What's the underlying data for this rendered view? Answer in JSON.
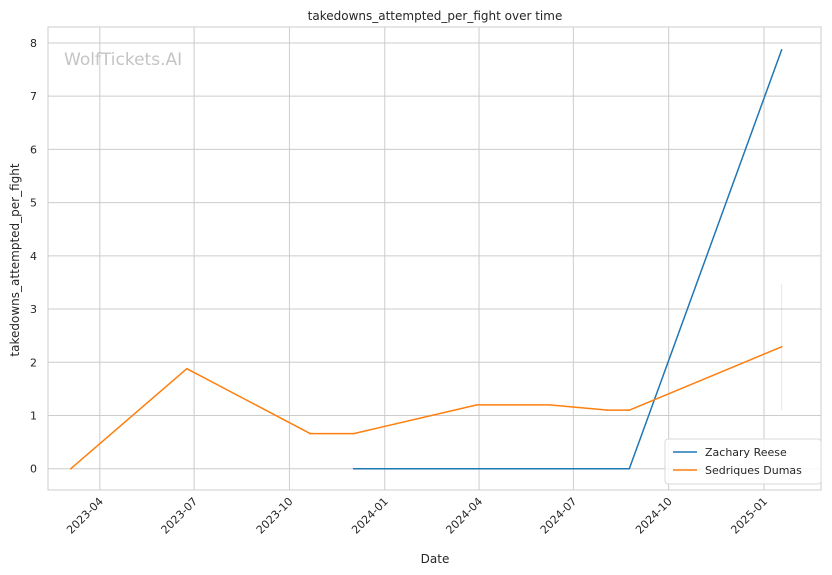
{
  "chart_data": {
    "type": "line",
    "title": "takedowns_attempted_per_fight over time",
    "xlabel": "Date",
    "ylabel": "takedowns_attempted_per_fight",
    "watermark": "WolfTickets.AI",
    "x_ticks": [
      "2023-04",
      "2023-07",
      "2023-10",
      "2024-01",
      "2024-04",
      "2024-07",
      "2024-10",
      "2025-01"
    ],
    "x_tick_dates": [
      "2023-04-01",
      "2023-07-01",
      "2023-10-01",
      "2024-01-01",
      "2024-04-01",
      "2024-07-01",
      "2024-10-01",
      "2025-01-01"
    ],
    "xlim": [
      "2023-02-10",
      "2025-02-25"
    ],
    "y_ticks": [
      0,
      1,
      2,
      3,
      4,
      5,
      6,
      7,
      8
    ],
    "ylim": [
      -0.4,
      8.3
    ],
    "grid": true,
    "legend_position": "bottom-right",
    "series": [
      {
        "name": "Zachary Reese",
        "color": "#1f77b4",
        "points": [
          {
            "x": "2023-12-02",
            "y": 0
          },
          {
            "x": "2024-08-24",
            "y": 0
          },
          {
            "x": "2025-01-18",
            "y": 7.87
          }
        ]
      },
      {
        "name": "Sedriques Dumas",
        "color": "#ff7f0e",
        "points": [
          {
            "x": "2023-03-04",
            "y": 0
          },
          {
            "x": "2023-06-24",
            "y": 1.88
          },
          {
            "x": "2023-10-21",
            "y": 0.66
          },
          {
            "x": "2023-12-02",
            "y": 0.66
          },
          {
            "x": "2024-03-30",
            "y": 1.2
          },
          {
            "x": "2024-06-08",
            "y": 1.2
          },
          {
            "x": "2024-08-03",
            "y": 1.1
          },
          {
            "x": "2024-08-24",
            "y": 1.1
          },
          {
            "x": "2025-01-18",
            "y": 2.29
          }
        ],
        "band_at_end": [
          1.1,
          3.47
        ]
      }
    ]
  }
}
